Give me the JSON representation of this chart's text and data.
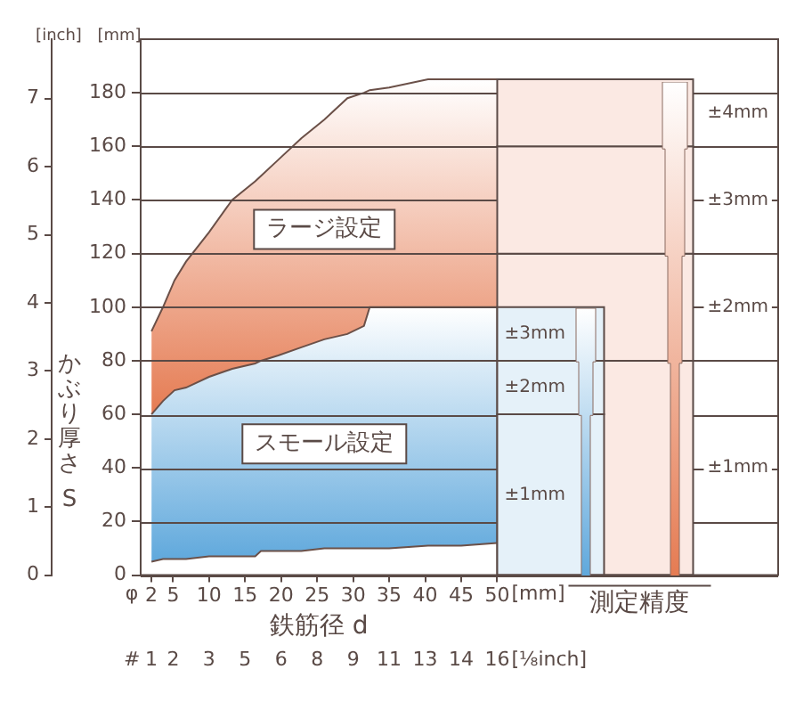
{
  "chart_data": {
    "type": "area",
    "stacked": true,
    "xlabel": "鉄筋径 d",
    "y2label": "かぶり厚さ S",
    "x": [
      2,
      3.6,
      5.2,
      6.8,
      10,
      13.2,
      16.4,
      17.2,
      19.6,
      22.8,
      26,
      29.2,
      31.5,
      32.3,
      35,
      40.4,
      45,
      50
    ],
    "series": [
      {
        "color": "#ffffff",
        "values": [
          5,
          6,
          6,
          6,
          7,
          7,
          7,
          9,
          9,
          9,
          10,
          10,
          10,
          10,
          10,
          11,
          11,
          12
        ]
      },
      {
        "name": "スモール設定",
        "color": "#5fa8dc",
        "values": [
          55,
          59,
          63,
          64,
          67,
          70,
          72,
          71,
          73,
          76,
          78,
          80,
          83,
          90,
          90,
          89,
          89,
          88
        ]
      },
      {
        "name": "ラージ設定",
        "color": "#e57b52",
        "values": [
          31,
          35,
          41,
          47,
          54,
          63,
          68,
          69,
          73,
          78,
          82,
          88,
          87,
          81,
          82,
          85,
          85,
          85
        ]
      }
    ],
    "xlim": [
      0.5,
      89
    ],
    "xticks": [
      2,
      5,
      10,
      15,
      20,
      25,
      30,
      35,
      40,
      45,
      50
    ],
    "ylim": [
      0,
      200
    ],
    "yticks": [
      0,
      20,
      40,
      60,
      80,
      100,
      120,
      140,
      160,
      180
    ],
    "y2lim": [
      0,
      7.874
    ],
    "y2ticks": [
      0,
      1,
      2,
      3,
      4,
      5,
      6,
      7
    ],
    "grid": "y",
    "marker": "none",
    "bands": [
      {
        "axis": "y",
        "from": 0,
        "to": 80,
        "label": "±1mm",
        "color": "#e57b52"
      },
      {
        "axis": "y",
        "from": 80,
        "to": 120,
        "label": "±2mm",
        "color": "#e57b52"
      },
      {
        "axis": "y",
        "from": 120,
        "to": 160,
        "label": "±3mm",
        "color": "#e57b52"
      },
      {
        "axis": "y",
        "from": 160,
        "to": 185,
        "label": "±4mm",
        "color": "#e57b52"
      },
      {
        "axis": "y",
        "from": 0,
        "to": 60,
        "label": "±1mm",
        "color": "#5fa8dc"
      },
      {
        "axis": "y",
        "from": 60,
        "to": 80,
        "label": "±2mm",
        "color": "#5fa8dc"
      },
      {
        "axis": "y",
        "from": 80,
        "to": 100,
        "label": "±3mm",
        "color": "#5fa8dc"
      }
    ],
    "annotations": [
      "[inch]",
      "[mm]",
      "φ",
      "[mm]",
      "#",
      "[⅛inch]",
      "測定精度",
      "1",
      "2",
      "3",
      "5",
      "6",
      "8",
      "9",
      "11",
      "13",
      "14",
      "16"
    ]
  }
}
